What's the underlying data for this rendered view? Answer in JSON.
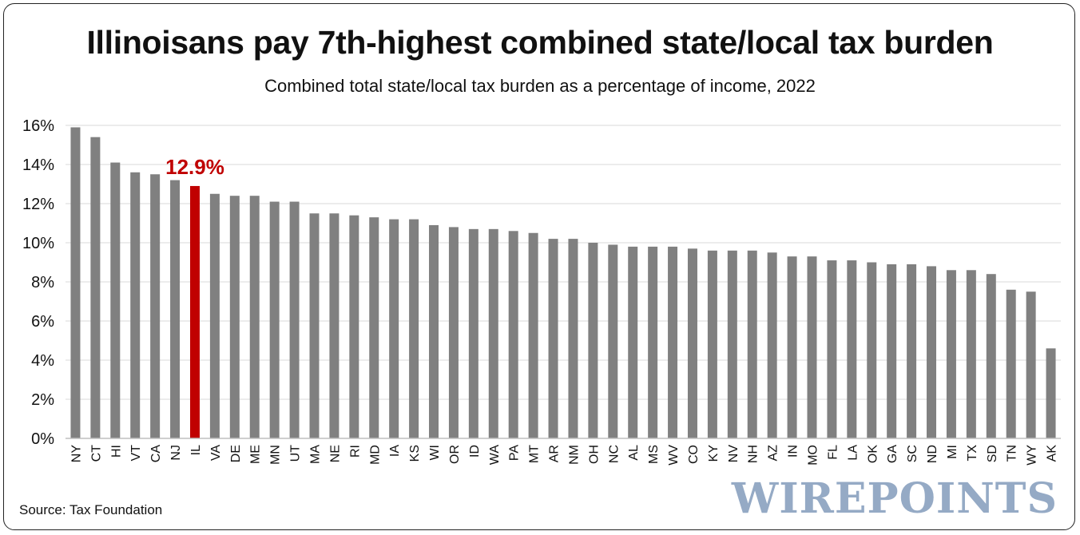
{
  "title": "Illinoisans pay 7th-highest combined state/local tax burden",
  "subtitle": "Combined total state/local tax burden as a percentage of income, 2022",
  "source": "Source: Tax Foundation",
  "watermark": "WIREPOINTS",
  "colors": {
    "bar": "#808080",
    "highlight": "#c00000",
    "grid": "#d9d9d9"
  },
  "chart_data": {
    "type": "bar",
    "title": "Combined total state/local tax burden as a percentage of income, 2022",
    "xlabel": "",
    "ylabel": "",
    "ylim": [
      0,
      16
    ],
    "y_ticks": [
      "0%",
      "2%",
      "4%",
      "6%",
      "8%",
      "10%",
      "12%",
      "14%",
      "16%"
    ],
    "y_tick_values": [
      0,
      2,
      4,
      6,
      8,
      10,
      12,
      14,
      16
    ],
    "categories": [
      "NY",
      "CT",
      "HI",
      "VT",
      "CA",
      "NJ",
      "IL",
      "VA",
      "DE",
      "ME",
      "MN",
      "UT",
      "MA",
      "NE",
      "RI",
      "MD",
      "IA",
      "KS",
      "WI",
      "OR",
      "ID",
      "WA",
      "PA",
      "MT",
      "AR",
      "NM",
      "OH",
      "NC",
      "AL",
      "MS",
      "WV",
      "CO",
      "KY",
      "NV",
      "NH",
      "AZ",
      "IN",
      "MO",
      "FL",
      "LA",
      "OK",
      "GA",
      "SC",
      "ND",
      "MI",
      "TX",
      "SD",
      "TN",
      "WY",
      "AK"
    ],
    "values": [
      15.9,
      15.4,
      14.1,
      13.6,
      13.5,
      13.2,
      12.9,
      12.5,
      12.4,
      12.4,
      12.1,
      12.1,
      11.5,
      11.5,
      11.4,
      11.3,
      11.2,
      11.2,
      10.9,
      10.8,
      10.7,
      10.7,
      10.6,
      10.5,
      10.2,
      10.2,
      10.0,
      9.9,
      9.8,
      9.8,
      9.8,
      9.7,
      9.6,
      9.6,
      9.6,
      9.5,
      9.3,
      9.3,
      9.1,
      9.1,
      9.0,
      8.9,
      8.9,
      8.8,
      8.6,
      8.6,
      8.4,
      7.6,
      7.5,
      4.6
    ],
    "highlight": {
      "category": "IL",
      "label": "12.9%"
    },
    "grid": true
  }
}
